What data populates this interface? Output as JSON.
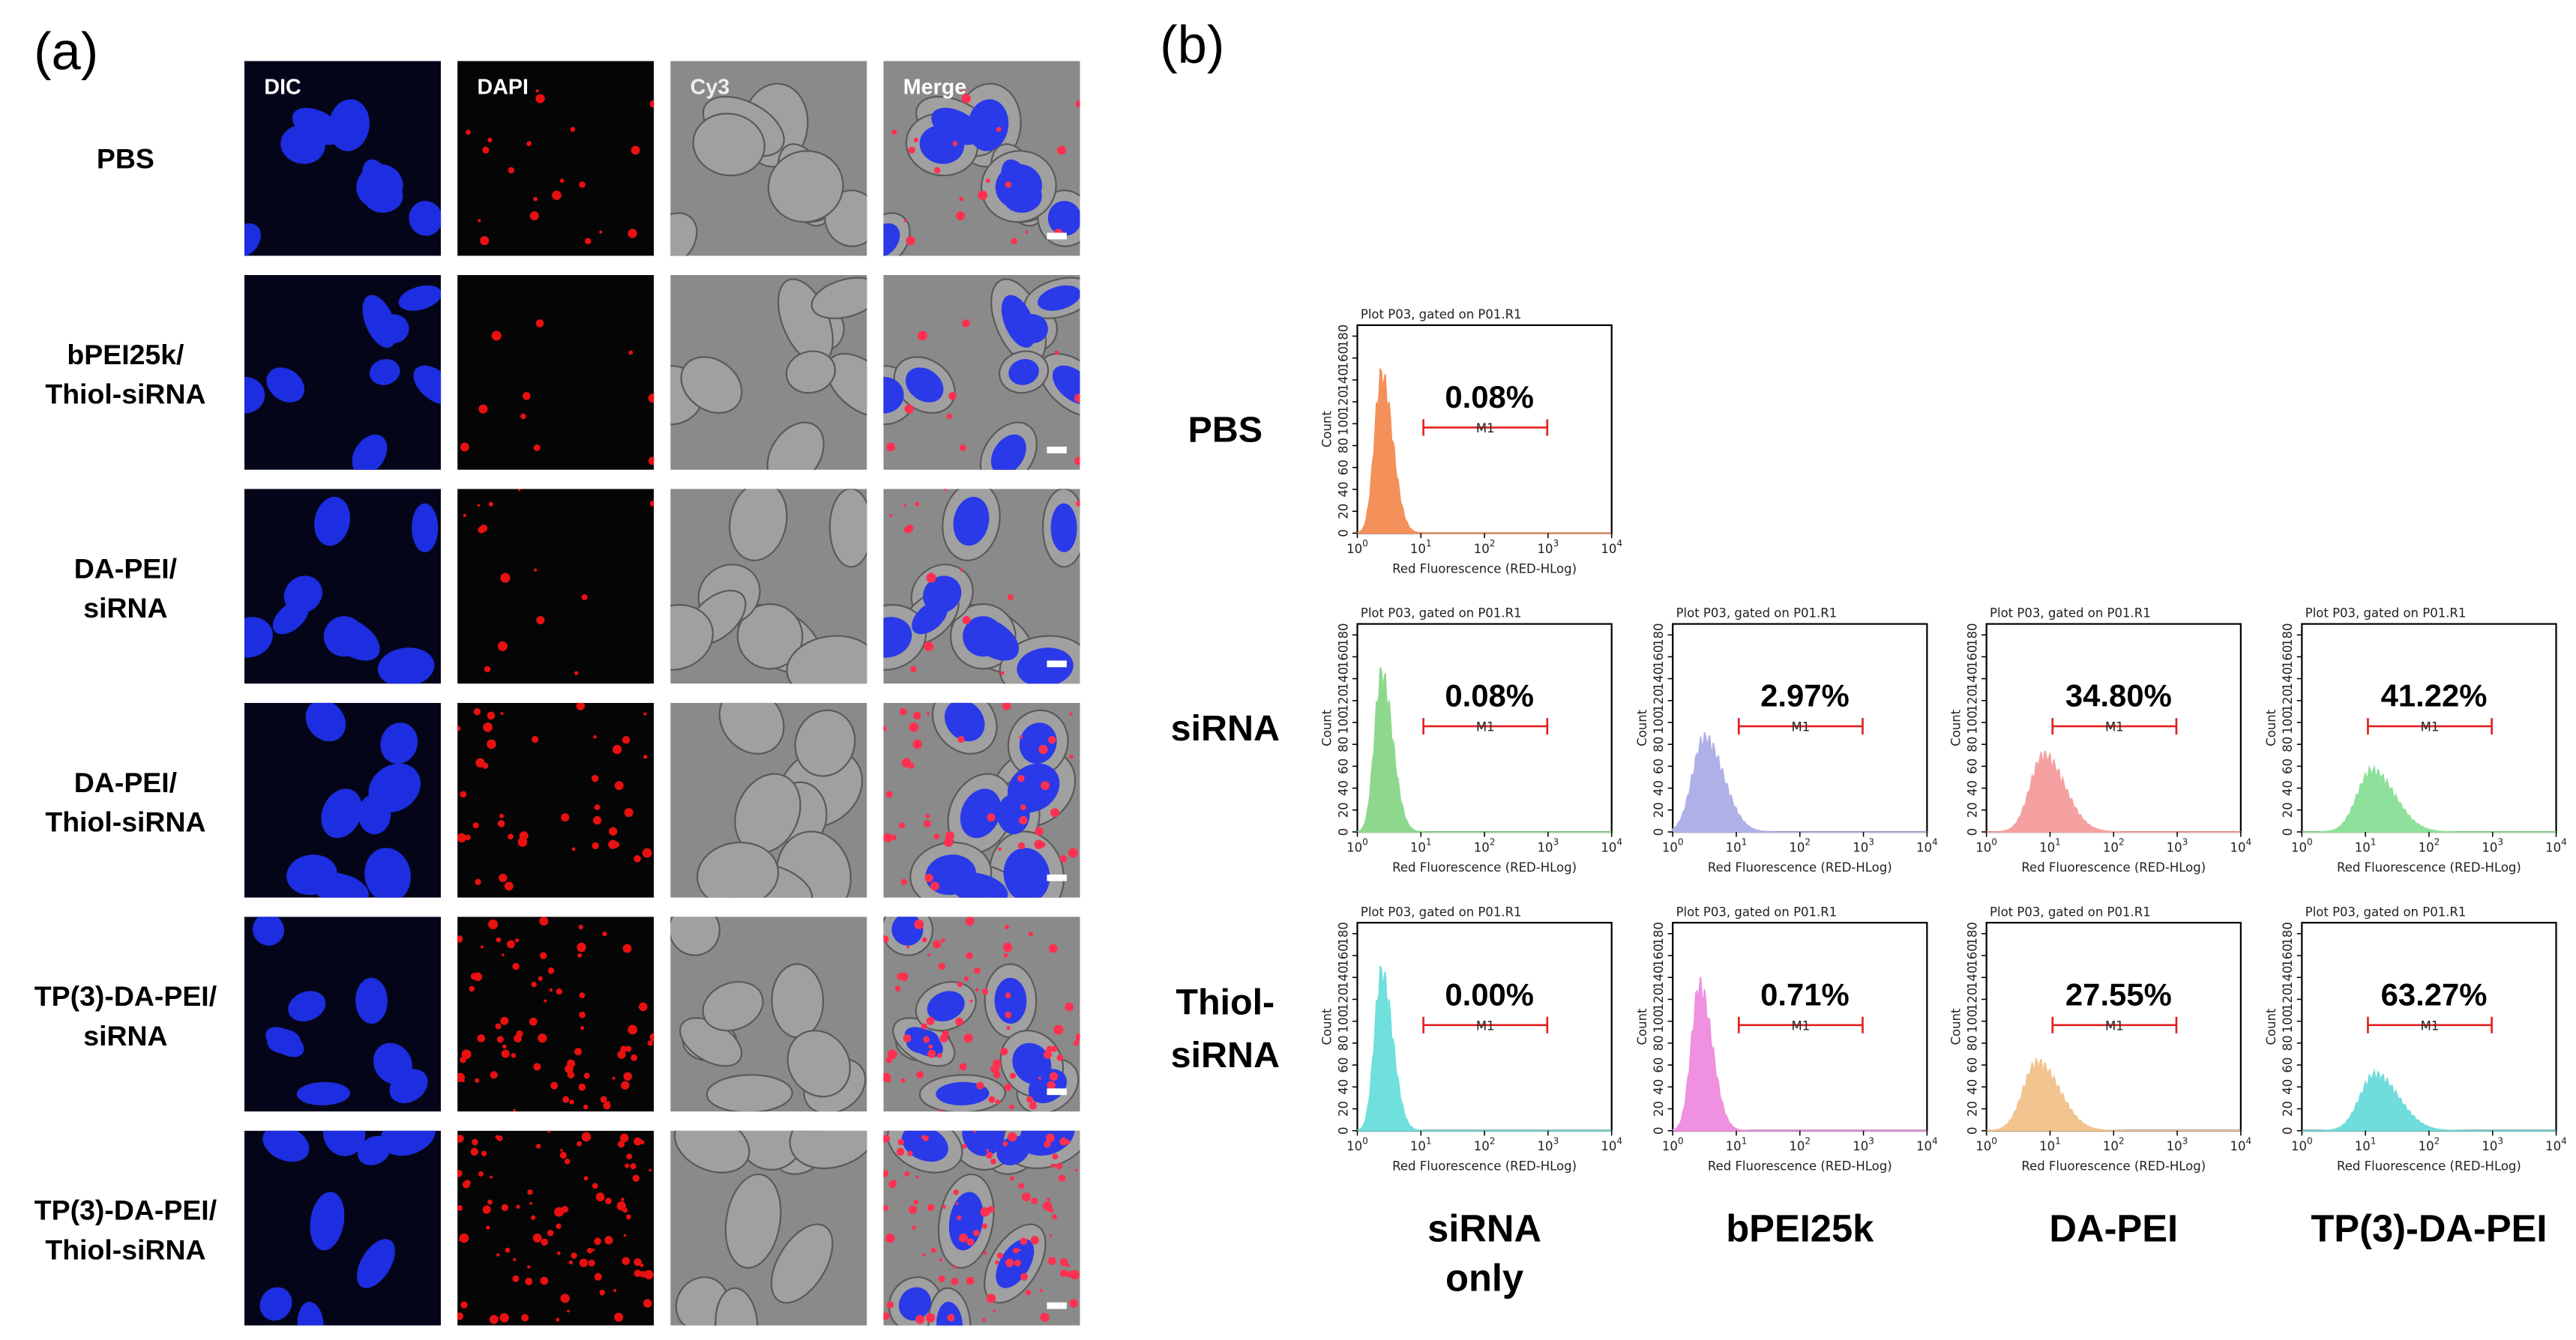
{
  "panel_a": {
    "label": "(a)",
    "columns": [
      "DIC",
      "DAPI",
      "Cy3",
      "Merge"
    ],
    "rows": [
      [
        "PBS"
      ],
      [
        "bPEI25k/",
        "Thiol-siRNA"
      ],
      [
        "DA-PEI/",
        "siRNA"
      ],
      [
        "DA-PEI/",
        "Thiol-siRNA"
      ],
      [
        "TP(3)-DA-PEI/",
        "siRNA"
      ],
      [
        "TP(3)-DA-PEI/",
        "Thiol-siRNA"
      ]
    ]
  },
  "panel_b": {
    "label": "(b)",
    "plot_title": "Plot P03, gated on P01.R1",
    "y_axis_label": "Count",
    "x_axis_label": "Red Fluorescence (RED-HLog)",
    "marker": "M1",
    "ylim": [
      0,
      190
    ],
    "yticks": [
      0,
      20,
      40,
      60,
      80,
      100,
      120,
      140,
      160,
      180
    ],
    "xlim": [
      0,
      4
    ],
    "x_tick_base": "10",
    "xticks": [
      0,
      1,
      2,
      3,
      4
    ],
    "columns": [
      [
        "siRNA",
        "only"
      ],
      [
        "bPEI25k"
      ],
      [
        "DA-PEI"
      ],
      [
        "TP(3)-DA-PEI"
      ]
    ],
    "rows": [
      {
        "name": [
          "PBS"
        ],
        "plots": [
          {
            "percent": "0.08%",
            "color": "#f4905a",
            "peak_log": 0.38,
            "peak_count": 155
          }
        ]
      },
      {
        "name": [
          "siRNA"
        ],
        "plots": [
          {
            "percent": "0.08%",
            "color": "#8ed88e",
            "peak_log": 0.38,
            "peak_count": 155
          },
          {
            "percent": "2.97%",
            "color": "#b0b0e8",
            "peak_log": 0.5,
            "peak_count": 92
          },
          {
            "percent": "34.80%",
            "color": "#f5a0a0",
            "peak_log": 0.9,
            "peak_count": 75
          },
          {
            "percent": "41.22%",
            "color": "#8ee09a",
            "peak_log": 1.1,
            "peak_count": 60
          }
        ]
      },
      {
        "name": [
          "Thiol-",
          "siRNA"
        ],
        "plots": [
          {
            "percent": "0.00%",
            "color": "#70e0dc",
            "peak_log": 0.38,
            "peak_count": 155
          },
          {
            "percent": "0.71%",
            "color": "#f090e0",
            "peak_log": 0.42,
            "peak_count": 142
          },
          {
            "percent": "27.55%",
            "color": "#f2c490",
            "peak_log": 0.8,
            "peak_count": 67
          },
          {
            "percent": "63.27%",
            "color": "#70dcdc",
            "peak_log": 1.15,
            "peak_count": 55
          }
        ]
      }
    ]
  }
}
